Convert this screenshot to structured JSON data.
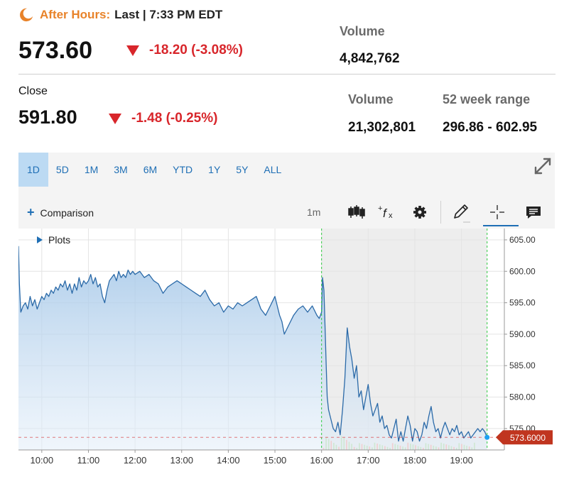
{
  "quote": {
    "after_hours_label": "After Hours:",
    "after_hours_sep": "Last |",
    "after_hours_time": "7:33 PM EDT",
    "last_price": "573.60",
    "last_change": "-18.20 (-3.08%)",
    "ah_volume_label": "Volume",
    "ah_volume": "4,842,762",
    "close_label": "Close",
    "close_price": "591.80",
    "close_change": "-1.48 (-0.25%)",
    "volume_label": "Volume",
    "volume": "21,302,801",
    "range_label": "52 week range",
    "range": "296.86 - 602.95"
  },
  "colors": {
    "down": "#d8262b",
    "accent": "#1f6fb5",
    "after_hours": "#e8832a",
    "line": "#2b6aa8"
  },
  "range_tabs": [
    {
      "label": "1D",
      "active": true
    },
    {
      "label": "5D"
    },
    {
      "label": "1M"
    },
    {
      "label": "3M"
    },
    {
      "label": "6M"
    },
    {
      "label": "YTD"
    },
    {
      "label": "1Y"
    },
    {
      "label": "5Y"
    },
    {
      "label": "ALL"
    }
  ],
  "toolbar": {
    "comparison_label": "Comparison",
    "interval": "1m",
    "icons": [
      "candlestick-icon",
      "function-icon",
      "gear-icon",
      "pencil-icon",
      "crosshair-icon",
      "comment-icon"
    ]
  },
  "plots_label": "Plots",
  "chart_data": {
    "type": "area",
    "x_ticks": [
      "10:00",
      "11:00",
      "12:00",
      "13:00",
      "14:00",
      "15:00",
      "16:00",
      "17:00",
      "18:00",
      "19:00"
    ],
    "y_ticks": [
      "605.00",
      "600.00",
      "595.00",
      "590.00",
      "585.00",
      "580.00",
      "575.00"
    ],
    "ylim": [
      571.6,
      606.8
    ],
    "xlim": [
      9.5,
      19.92
    ],
    "last_label": "573.6000",
    "last_value": 573.6,
    "after_hours_start": 16.0,
    "after_hours_end": 19.55,
    "series": [
      {
        "x": [
          9.5,
          9.52,
          9.55,
          9.6,
          9.65,
          9.7,
          9.75,
          9.8,
          9.85,
          9.9,
          9.95,
          10.0,
          10.05,
          10.1,
          10.15,
          10.2,
          10.25,
          10.3,
          10.35,
          10.4,
          10.45,
          10.5,
          10.55,
          10.6,
          10.65,
          10.7,
          10.75,
          10.8,
          10.85,
          10.9,
          10.95,
          11.0,
          11.05,
          11.1,
          11.15,
          11.2,
          11.25,
          11.3,
          11.35,
          11.4,
          11.45,
          11.5,
          11.55,
          11.6,
          11.65,
          11.7,
          11.75,
          11.8,
          11.85,
          11.9,
          11.95,
          12.0,
          12.1,
          12.2,
          12.3,
          12.4,
          12.5,
          12.6,
          12.7,
          12.8,
          12.9,
          13.0,
          13.1,
          13.2,
          13.3,
          13.4,
          13.5,
          13.6,
          13.7,
          13.8,
          13.9,
          14.0,
          14.1,
          14.2,
          14.3,
          14.4,
          14.5,
          14.6,
          14.7,
          14.8,
          14.9,
          15.0,
          15.05,
          15.1,
          15.15,
          15.2,
          15.3,
          15.4,
          15.5,
          15.6,
          15.7,
          15.8,
          15.9,
          15.95,
          16.0,
          16.02,
          16.05,
          16.08,
          16.1,
          16.12,
          16.15,
          16.2,
          16.25,
          16.3,
          16.35,
          16.4,
          16.45,
          16.5,
          16.55,
          16.6,
          16.65,
          16.7,
          16.75,
          16.8,
          16.85,
          16.9,
          16.95,
          17.0,
          17.05,
          17.1,
          17.15,
          17.2,
          17.25,
          17.3,
          17.35,
          17.4,
          17.45,
          17.5,
          17.55,
          17.6,
          17.65,
          17.7,
          17.75,
          17.8,
          17.85,
          17.9,
          17.95,
          18.0,
          18.05,
          18.1,
          18.15,
          18.2,
          18.25,
          18.3,
          18.35,
          18.4,
          18.45,
          18.5,
          18.55,
          18.6,
          18.65,
          18.7,
          18.75,
          18.8,
          18.85,
          18.9,
          18.95,
          19.0,
          19.05,
          19.1,
          19.15,
          19.2,
          19.25,
          19.3,
          19.35,
          19.4,
          19.45,
          19.5,
          19.55
        ],
        "y": [
          604.0,
          598.0,
          593.5,
          594.5,
          595.0,
          594.0,
          596.0,
          594.5,
          595.5,
          594.0,
          595.0,
          596.0,
          595.5,
          596.5,
          596.0,
          597.0,
          596.5,
          597.5,
          597.0,
          598.0,
          597.5,
          598.5,
          597.0,
          598.0,
          596.5,
          598.0,
          597.0,
          599.0,
          597.5,
          598.5,
          598.0,
          598.5,
          599.5,
          598.0,
          599.0,
          597.5,
          598.0,
          596.0,
          595.0,
          597.0,
          598.5,
          599.0,
          599.5,
          598.5,
          600.0,
          599.0,
          599.5,
          599.0,
          600.2,
          599.5,
          600.0,
          599.5,
          600.0,
          599.0,
          599.5,
          598.5,
          598.0,
          596.5,
          597.5,
          598.0,
          598.5,
          598.0,
          597.5,
          597.0,
          596.5,
          596.0,
          597.0,
          595.5,
          594.5,
          595.0,
          593.5,
          594.5,
          594.0,
          595.0,
          594.5,
          595.0,
          595.5,
          596.0,
          594.0,
          593.0,
          594.5,
          596.0,
          594.5,
          593.0,
          592.0,
          590.0,
          591.5,
          593.0,
          594.0,
          594.5,
          593.5,
          594.5,
          593.0,
          592.5,
          593.5,
          599.0,
          597.0,
          590.0,
          585.0,
          580.0,
          578.0,
          576.5,
          575.0,
          574.5,
          576.0,
          574.0,
          578.0,
          583.0,
          591.0,
          588.0,
          586.0,
          583.0,
          585.0,
          580.0,
          581.0,
          578.0,
          580.0,
          582.0,
          579.0,
          577.0,
          578.0,
          579.0,
          576.0,
          577.0,
          575.0,
          575.5,
          574.0,
          573.5,
          575.0,
          576.5,
          573.0,
          574.5,
          573.0,
          575.0,
          577.0,
          575.5,
          573.0,
          575.0,
          574.5,
          573.0,
          574.0,
          576.0,
          575.0,
          577.0,
          578.5,
          576.0,
          574.5,
          575.0,
          573.5,
          575.0,
          576.0,
          575.0,
          574.0,
          575.0,
          574.5,
          575.5,
          574.0,
          574.5,
          573.5,
          574.0,
          574.5,
          573.5,
          574.0,
          574.5,
          575.0,
          574.5,
          575.0,
          574.5,
          573.6
        ]
      }
    ]
  }
}
